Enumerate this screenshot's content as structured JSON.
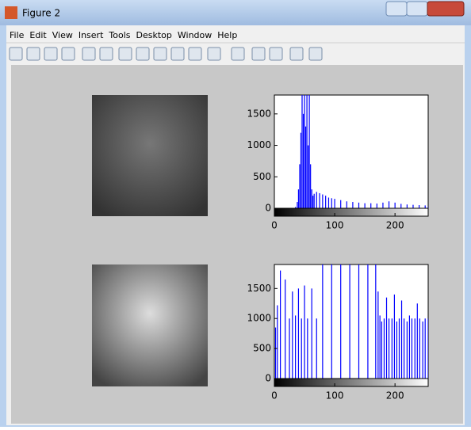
{
  "window": {
    "title": "Figure 2",
    "menu": [
      "File",
      "Edit",
      "View",
      "Insert",
      "Tools",
      "Desktop",
      "Window",
      "Help"
    ]
  },
  "chart_data": [
    {
      "type": "stem",
      "color": "#0000ff",
      "x": [
        35,
        38,
        40,
        42,
        44,
        46,
        48,
        50,
        52,
        54,
        56,
        58,
        60,
        62,
        64,
        66,
        70,
        75,
        80,
        85,
        90,
        95,
        100,
        110,
        120,
        130,
        140,
        150,
        160,
        170,
        180,
        190,
        200,
        210,
        220,
        230,
        240,
        250,
        255
      ],
      "values": [
        20,
        100,
        300,
        700,
        1200,
        1800,
        1500,
        1800,
        1300,
        1800,
        1000,
        1800,
        700,
        300,
        200,
        230,
        260,
        240,
        220,
        200,
        170,
        160,
        150,
        130,
        110,
        100,
        90,
        80,
        80,
        75,
        90,
        110,
        90,
        70,
        60,
        55,
        50,
        45,
        30
      ],
      "xlim": [
        0,
        255
      ],
      "xticks": [
        0,
        100,
        200
      ],
      "ylim": [
        0,
        1800
      ],
      "yticks": [
        0,
        500,
        1000,
        1500
      ]
    },
    {
      "type": "stem",
      "color": "#0000ff",
      "x": [
        2,
        5,
        10,
        18,
        25,
        30,
        35,
        40,
        45,
        50,
        55,
        62,
        70,
        80,
        95,
        110,
        125,
        140,
        155,
        168,
        172,
        175,
        178,
        182,
        186,
        190,
        195,
        199,
        203,
        207,
        211,
        215,
        220,
        224,
        228,
        233,
        237,
        241,
        246,
        250,
        255
      ],
      "values": [
        850,
        1220,
        1800,
        1650,
        1000,
        1450,
        1050,
        1500,
        1000,
        1550,
        1000,
        1500,
        1000,
        1900,
        1900,
        1900,
        1900,
        1900,
        1900,
        1900,
        1450,
        1050,
        950,
        1000,
        1350,
        1000,
        1000,
        1400,
        950,
        1000,
        1300,
        1000,
        950,
        1050,
        1000,
        1000,
        1250,
        1000,
        950,
        1000,
        1000
      ],
      "xlim": [
        0,
        255
      ],
      "xticks": [
        0,
        100,
        200
      ],
      "ylim": [
        0,
        1900
      ],
      "yticks": [
        0,
        500,
        1000,
        1500
      ]
    }
  ]
}
